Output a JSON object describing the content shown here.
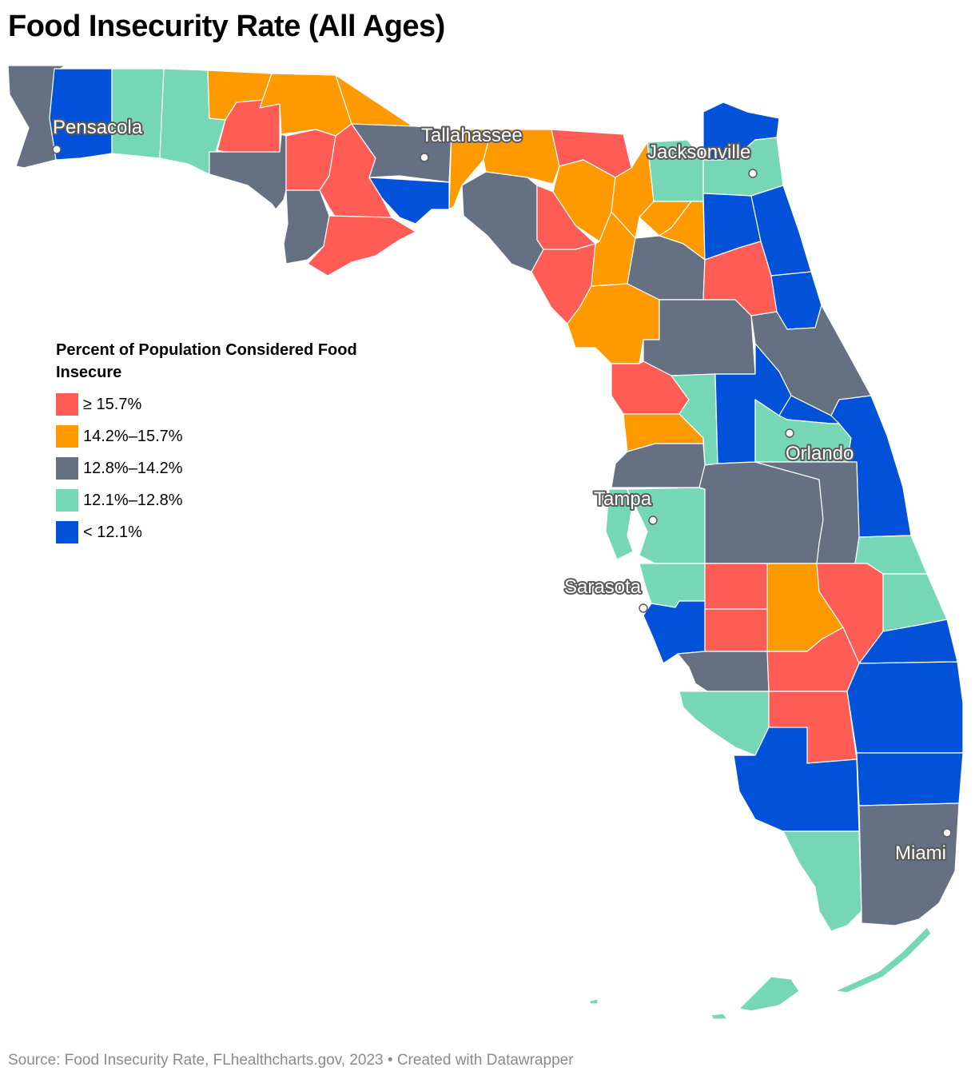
{
  "title": "Food Insecurity Rate (All Ages)",
  "legend": {
    "title": "Percent of Population Considered Food Insecure",
    "items": [
      {
        "label": "≥ 15.7%",
        "color": "#ff5c55"
      },
      {
        "label": "14.2%–15.7%",
        "color": "#ff9900"
      },
      {
        "label": "12.8%–14.2%",
        "color": "#657083"
      },
      {
        "label": "12.1%–12.8%",
        "color": "#76d7b6"
      },
      {
        "label": "< 12.1%",
        "color": "#0152d9"
      }
    ]
  },
  "cities": [
    {
      "name": "Pensacola"
    },
    {
      "name": "Tallahassee"
    },
    {
      "name": "Jacksonville"
    },
    {
      "name": "Orlando"
    },
    {
      "name": "Tampa"
    },
    {
      "name": "Sarasota"
    },
    {
      "name": "Miami"
    }
  ],
  "footer": "Source: Food Insecurity Rate, FLhealthcharts.gov, 2023 • Created with Datawrapper"
}
